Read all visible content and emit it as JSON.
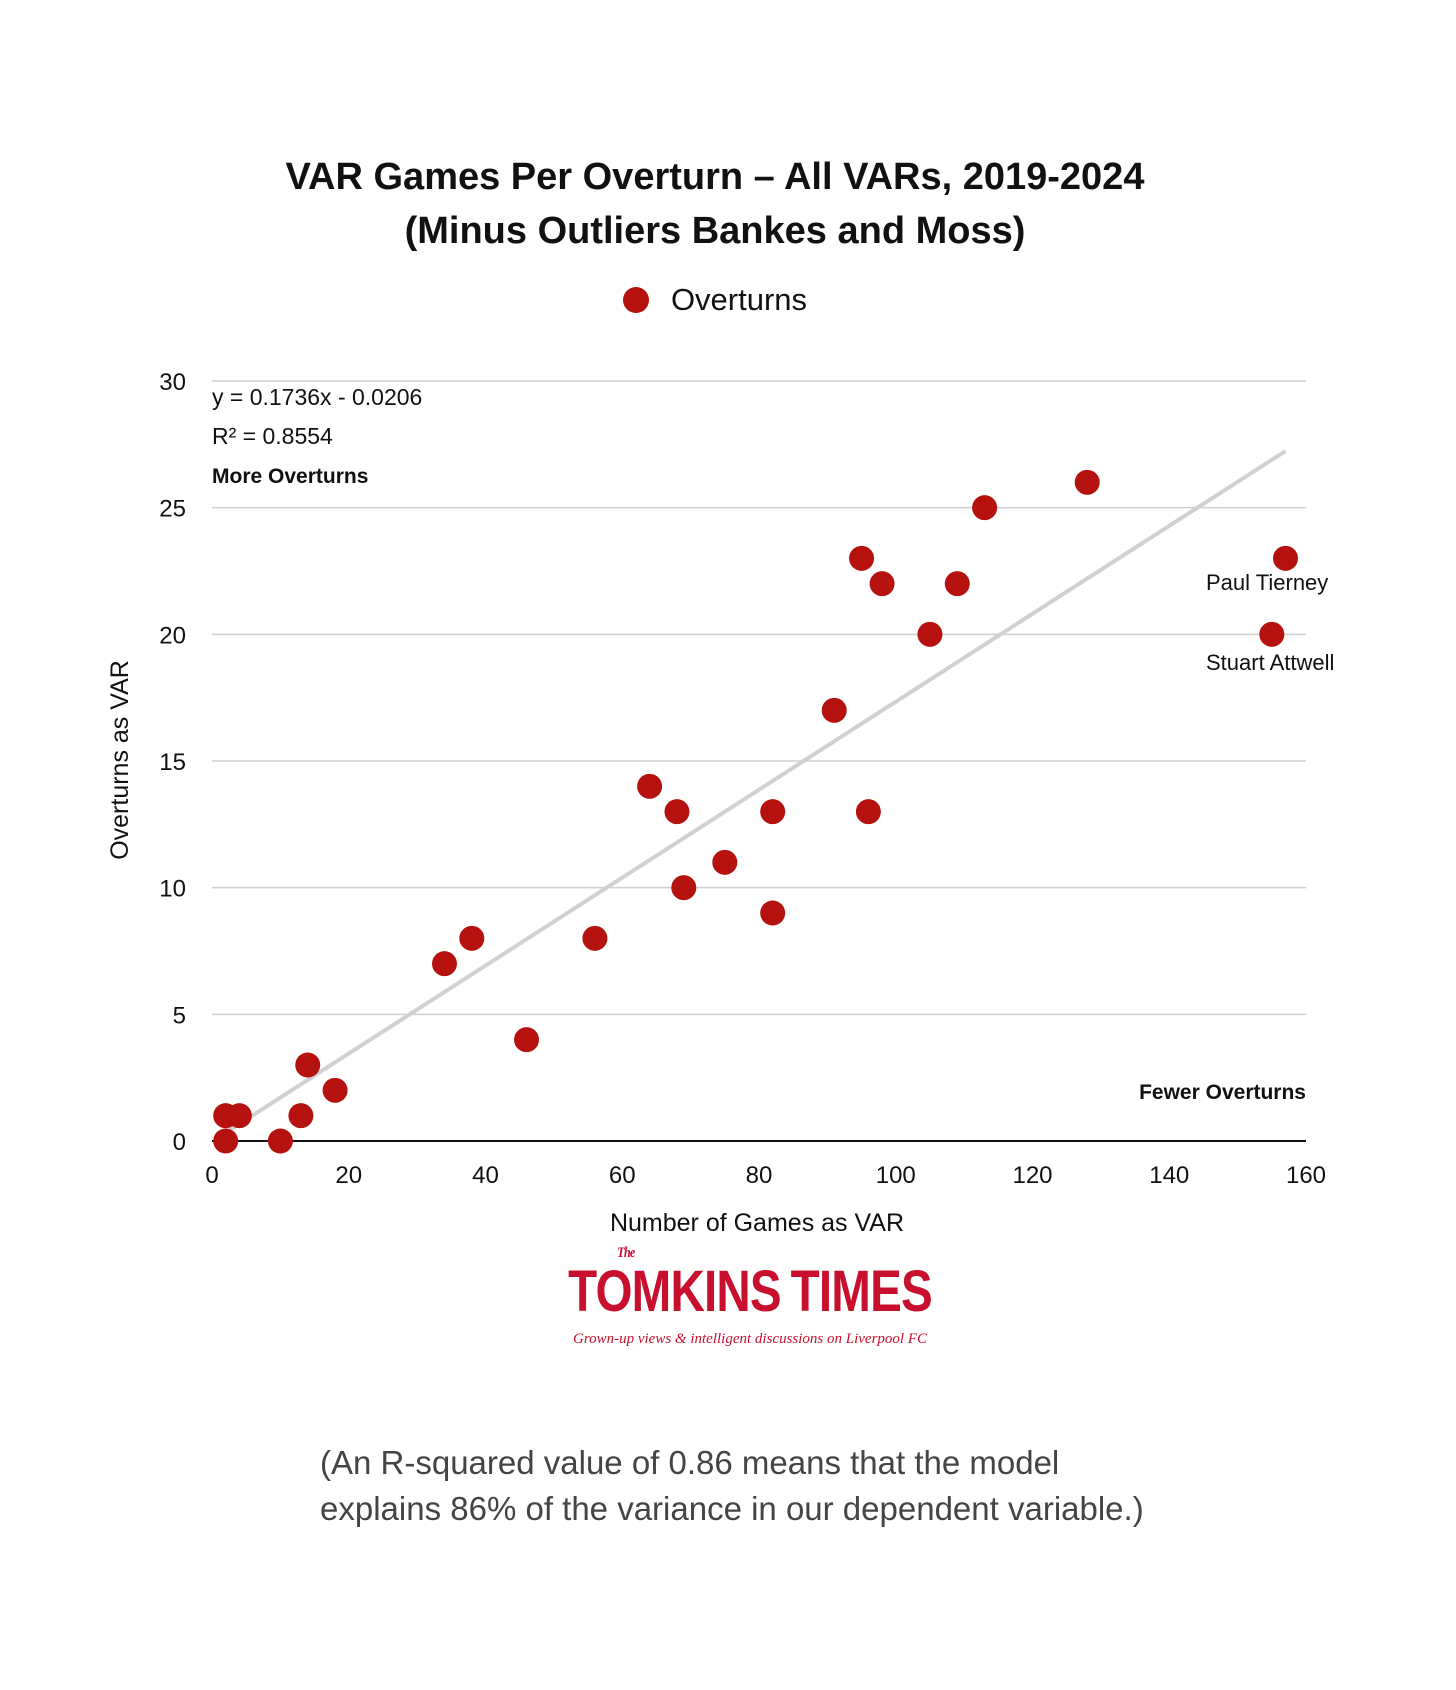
{
  "colors": {
    "point": "#b5120f",
    "trendline": "#d0d0d0",
    "grid": "#cfcfcf",
    "axis": "#111111",
    "brand": "#c8102e"
  },
  "title": {
    "line1": "VAR Games Per Overturn – All VARs, 2019-2024",
    "line2": "(Minus Outliers Bankes and Moss)"
  },
  "legend": {
    "label": "Overturns",
    "icon": "red-circle-marker"
  },
  "chart_data": {
    "type": "scatter",
    "xlabel": "Number of Games as VAR",
    "ylabel": "Overturns as VAR",
    "xlim": [
      0,
      160
    ],
    "ylim": [
      0,
      30
    ],
    "xticks": [
      0,
      20,
      40,
      60,
      80,
      100,
      120,
      140,
      160
    ],
    "yticks": [
      0,
      5,
      10,
      15,
      20,
      25,
      30
    ],
    "grid": "horizontal",
    "legend_placement": "top-center",
    "series": [
      {
        "name": "Overturns",
        "points": [
          {
            "x": 2,
            "y": 0
          },
          {
            "x": 2,
            "y": 1
          },
          {
            "x": 4,
            "y": 1
          },
          {
            "x": 10,
            "y": 0
          },
          {
            "x": 13,
            "y": 1
          },
          {
            "x": 14,
            "y": 3
          },
          {
            "x": 18,
            "y": 2
          },
          {
            "x": 34,
            "y": 7
          },
          {
            "x": 38,
            "y": 8
          },
          {
            "x": 46,
            "y": 4
          },
          {
            "x": 56,
            "y": 8
          },
          {
            "x": 64,
            "y": 14
          },
          {
            "x": 68,
            "y": 13
          },
          {
            "x": 69,
            "y": 10
          },
          {
            "x": 75,
            "y": 11
          },
          {
            "x": 82,
            "y": 13
          },
          {
            "x": 82,
            "y": 9
          },
          {
            "x": 91,
            "y": 17
          },
          {
            "x": 95,
            "y": 23
          },
          {
            "x": 96,
            "y": 13
          },
          {
            "x": 98,
            "y": 22
          },
          {
            "x": 105,
            "y": 20
          },
          {
            "x": 109,
            "y": 22
          },
          {
            "x": 113,
            "y": 25
          },
          {
            "x": 128,
            "y": 26
          },
          {
            "x": 155,
            "y": 20
          },
          {
            "x": 157,
            "y": 23
          }
        ]
      }
    ],
    "trendline": {
      "slope": 0.1736,
      "intercept": -0.0206,
      "x_range": [
        2,
        157
      ],
      "equation": "y = 0.1736x - 0.0206",
      "r_squared": "R² = 0.8554"
    },
    "annotations": {
      "more": "More Overturns",
      "fewer": "Fewer Overturns",
      "tierney": "Paul Tierney",
      "attwell": "Stuart Attwell"
    }
  },
  "logo": {
    "small": "The",
    "left": "TOMKINS",
    "right": "TIMES",
    "tagline": "Grown-up views & intelligent discussions on Liverpool FC",
    "icon": "liver-bird-icon"
  },
  "footnote": {
    "line1": "(An R-squared value of 0.86 means that the model",
    "line2": "explains 86% of the variance in our dependent variable.)"
  }
}
